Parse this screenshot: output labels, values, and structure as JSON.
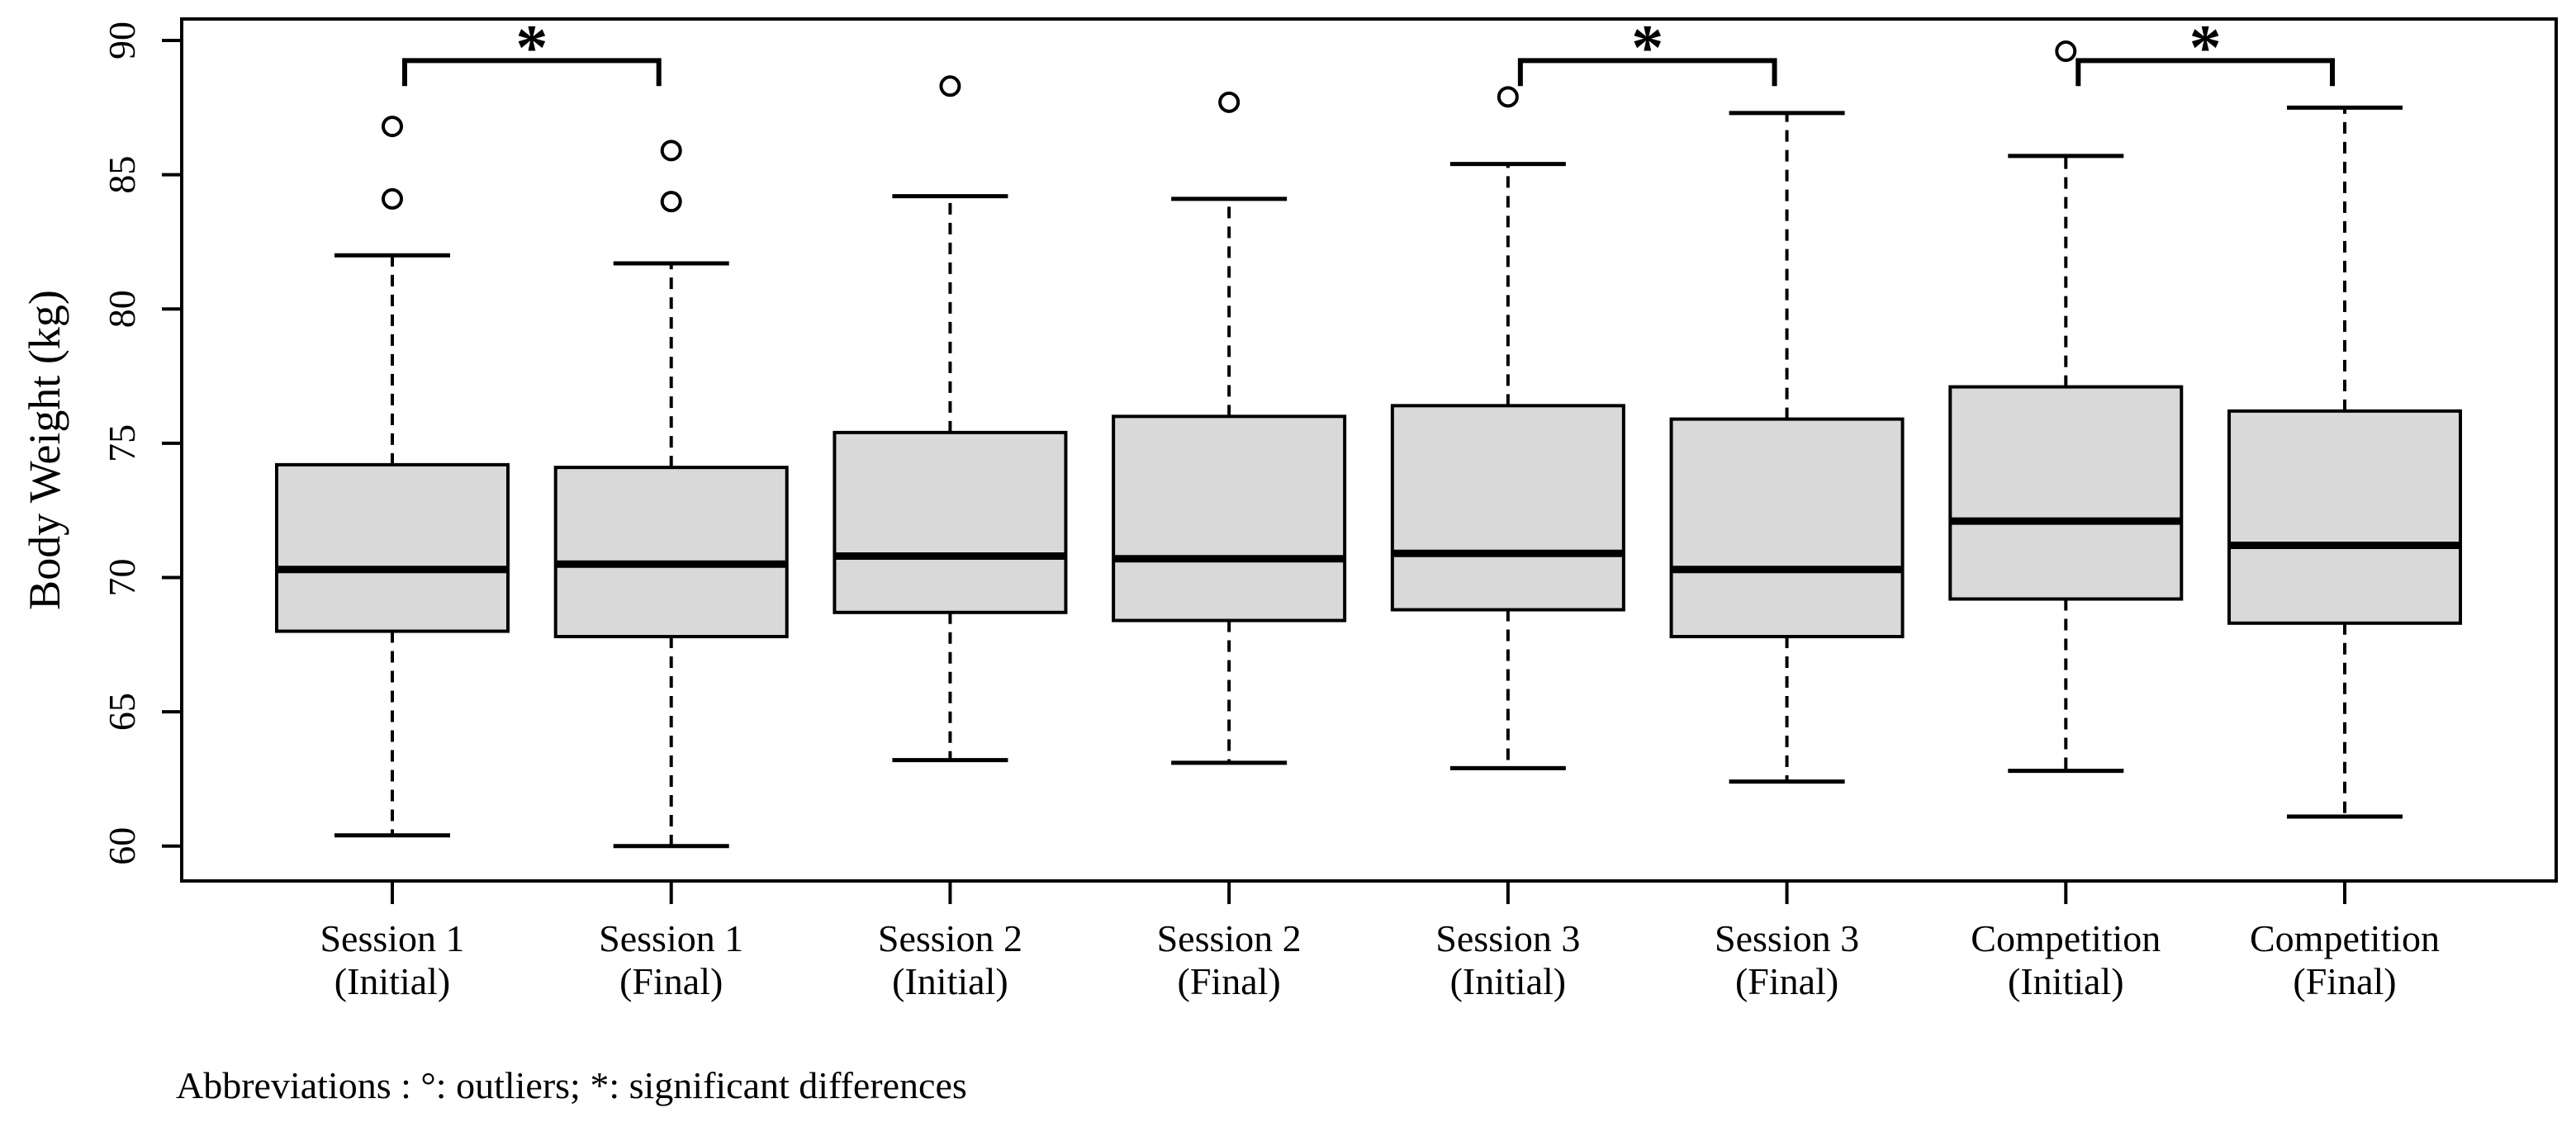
{
  "chart_data": {
    "type": "boxplot",
    "title": "",
    "xlabel": "",
    "ylabel": "Body Weight (kg)",
    "ylim": [
      58.7,
      90.8
    ],
    "yticks": [
      60,
      65,
      70,
      75,
      80,
      85,
      90
    ],
    "grid": false,
    "legend": false,
    "caption": "Abbreviations : °: outliers; *: significant differences",
    "categories": [
      {
        "label": "Session 1",
        "sublabel": "(Initial)"
      },
      {
        "label": "Session 1",
        "sublabel": "(Final)"
      },
      {
        "label": "Session 2",
        "sublabel": "(Initial)"
      },
      {
        "label": "Session 2",
        "sublabel": "(Final)"
      },
      {
        "label": "Session 3",
        "sublabel": "(Initial)"
      },
      {
        "label": "Session 3",
        "sublabel": "(Final)"
      },
      {
        "label": "Competition",
        "sublabel": "(Initial)"
      },
      {
        "label": "Competition",
        "sublabel": "(Final)"
      }
    ],
    "boxes": [
      {
        "category": "Session 1 (Initial)",
        "whisker_low": 60.4,
        "q1": 68.0,
        "median": 70.3,
        "q3": 74.2,
        "whisker_high": 82.0,
        "outliers": [
          84.1,
          86.8
        ]
      },
      {
        "category": "Session 1 (Final)",
        "whisker_low": 60.0,
        "q1": 67.8,
        "median": 70.5,
        "q3": 74.1,
        "whisker_high": 81.7,
        "outliers": [
          84.0,
          85.9
        ]
      },
      {
        "category": "Session 2 (Initial)",
        "whisker_low": 63.2,
        "q1": 68.7,
        "median": 70.8,
        "q3": 75.4,
        "whisker_high": 84.2,
        "outliers": [
          88.3
        ]
      },
      {
        "category": "Session 2 (Final)",
        "whisker_low": 63.1,
        "q1": 68.4,
        "median": 70.7,
        "q3": 76.0,
        "whisker_high": 84.1,
        "outliers": [
          87.7
        ]
      },
      {
        "category": "Session 3 (Initial)",
        "whisker_low": 62.9,
        "q1": 68.8,
        "median": 70.9,
        "q3": 76.4,
        "whisker_high": 85.4,
        "outliers": [
          87.9
        ]
      },
      {
        "category": "Session 3 (Final)",
        "whisker_low": 62.4,
        "q1": 67.8,
        "median": 70.3,
        "q3": 75.9,
        "whisker_high": 87.3,
        "outliers": []
      },
      {
        "category": "Competition (Initial)",
        "whisker_low": 62.8,
        "q1": 69.2,
        "median": 72.1,
        "q3": 77.1,
        "whisker_high": 85.7,
        "outliers": [
          89.6
        ]
      },
      {
        "category": "Competition (Final)",
        "whisker_low": 61.1,
        "q1": 68.3,
        "median": 71.2,
        "q3": 76.2,
        "whisker_high": 87.5,
        "outliers": []
      }
    ],
    "significance_brackets": [
      {
        "from": 0,
        "to": 1,
        "label": "*",
        "bar": 89.25,
        "drop_to": 88.3
      },
      {
        "from": 4,
        "to": 5,
        "label": "*",
        "bar": 89.25,
        "drop_to": 88.3
      },
      {
        "from": 6,
        "to": 7,
        "label": "*",
        "bar": 89.25,
        "drop_to": 88.3
      }
    ],
    "colors": {
      "box_fill": "#d9d9d9",
      "line": "#000000",
      "background": "#ffffff"
    }
  }
}
